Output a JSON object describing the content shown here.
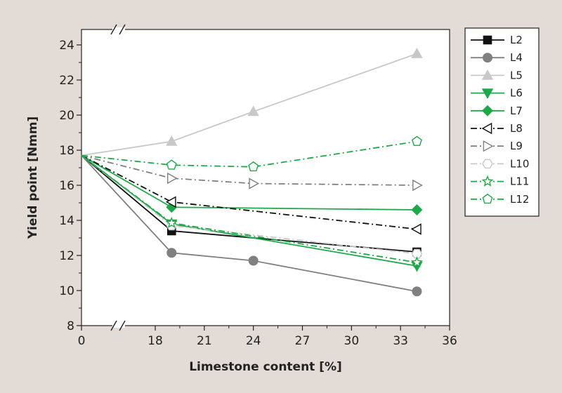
{
  "chart_data": {
    "type": "line",
    "title": "",
    "xlabel": "Limestone content [%]",
    "ylabel": "Yield point [Nmm]",
    "x": [
      0,
      19,
      24,
      34
    ],
    "xlim": [
      0,
      36
    ],
    "ylim": [
      8,
      25
    ],
    "x_axis_break": true,
    "x_ticks": [
      {
        "value": 0,
        "label": "0"
      },
      {
        "value": 18,
        "label": "18"
      },
      {
        "value": 21,
        "label": "21"
      },
      {
        "value": 24,
        "label": "24"
      },
      {
        "value": 27,
        "label": "27"
      },
      {
        "value": 30,
        "label": "30"
      },
      {
        "value": 33,
        "label": "33"
      },
      {
        "value": 36,
        "label": "36"
      }
    ],
    "y_ticks": [
      8,
      10,
      12,
      14,
      16,
      18,
      20,
      22,
      24
    ],
    "grid": false,
    "legend_position": "right",
    "series": [
      {
        "name": "L2",
        "values": [
          17.7,
          13.4,
          null,
          12.2
        ],
        "color": "#111111",
        "dash": "solid",
        "marker": "square",
        "filled": true
      },
      {
        "name": "L4",
        "values": [
          17.7,
          12.15,
          11.7,
          9.95
        ],
        "color": "#808080",
        "dash": "solid",
        "marker": "circle",
        "filled": true
      },
      {
        "name": "L5",
        "values": [
          17.7,
          18.5,
          20.2,
          23.5
        ],
        "color": "#c8c8c8",
        "dash": "solid",
        "marker": "triangle-up",
        "filled": true
      },
      {
        "name": "L6",
        "values": [
          17.7,
          13.8,
          null,
          11.4
        ],
        "color": "#1fa84a",
        "dash": "solid",
        "marker": "triangle-down",
        "filled": true
      },
      {
        "name": "L7",
        "values": [
          17.7,
          14.75,
          null,
          14.6
        ],
        "color": "#1fa84a",
        "dash": "solid",
        "marker": "diamond",
        "filled": true
      },
      {
        "name": "L8",
        "values": [
          17.7,
          15.05,
          null,
          13.5
        ],
        "color": "#111111",
        "dash": "dashdot",
        "marker": "triangle-left",
        "filled": false
      },
      {
        "name": "L9",
        "values": [
          17.7,
          16.4,
          16.1,
          16.0
        ],
        "color": "#808080",
        "dash": "dashdot",
        "marker": "triangle-right",
        "filled": false
      },
      {
        "name": "L10",
        "values": [
          17.7,
          13.7,
          null,
          12.1
        ],
        "color": "#c8c8c8",
        "dash": "dashdot",
        "marker": "hexagon",
        "filled": false
      },
      {
        "name": "L11",
        "values": [
          17.7,
          13.85,
          null,
          11.6
        ],
        "color": "#1fa84a",
        "dash": "dashdot",
        "marker": "star",
        "filled": false
      },
      {
        "name": "L12",
        "values": [
          17.7,
          17.15,
          17.05,
          18.5
        ],
        "color": "#1fa84a",
        "dash": "dashdot",
        "marker": "pentagon",
        "filled": false
      }
    ]
  }
}
